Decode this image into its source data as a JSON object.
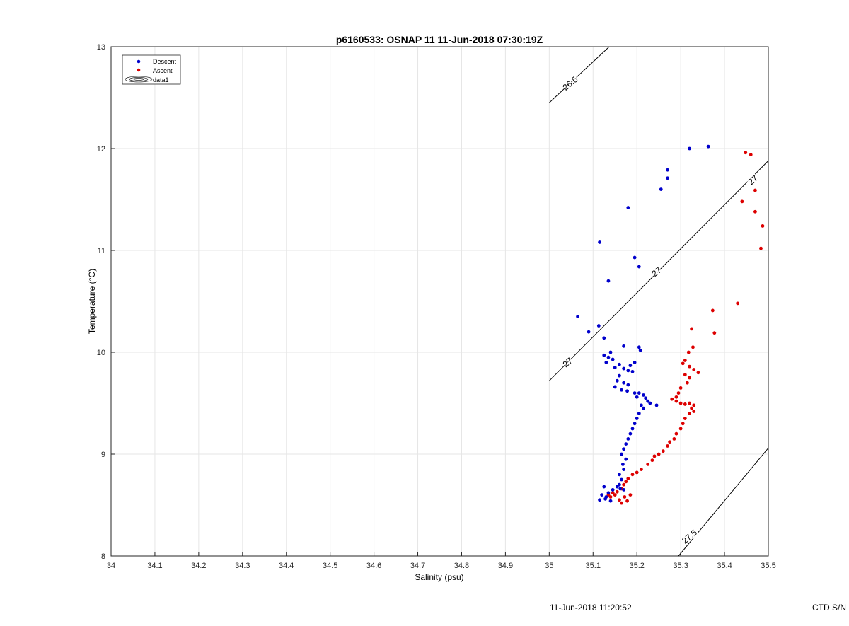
{
  "chart_data": {
    "type": "scatter",
    "title": "p6160533: OSNAP 11 11-Jun-2018 07:30:19Z",
    "xlabel": "Salinity (psu)",
    "ylabel": "Temperature (°C)",
    "xlim": [
      34,
      35.5
    ],
    "ylim": [
      8,
      13
    ],
    "xticks": [
      34,
      34.1,
      34.2,
      34.3,
      34.4,
      34.5,
      34.6,
      34.7,
      34.8,
      34.9,
      35,
      35.1,
      35.2,
      35.3,
      35.4,
      35.5
    ],
    "xtick_labels": [
      "34",
      "34.1",
      "34.2",
      "34.3",
      "34.4",
      "34.5",
      "34.6",
      "34.7",
      "34.8",
      "34.9",
      "35",
      "35.1",
      "35.2",
      "35.3",
      "35.4",
      "35.5"
    ],
    "yticks": [
      8,
      9,
      10,
      11,
      12,
      13
    ],
    "ytick_labels": [
      "8",
      "9",
      "10",
      "11",
      "12",
      "13"
    ],
    "grid": true,
    "legend_position": "top-left",
    "legend": [
      "Descent",
      "Ascent",
      "data1"
    ],
    "colors": {
      "descent": "#0000cc",
      "ascent": "#dd0000",
      "contour": "#000000"
    },
    "contours": [
      {
        "label": "26.5",
        "points": [
          [
            35.0,
            12.45
          ],
          [
            35.137,
            13.0
          ]
        ]
      },
      {
        "label": "27",
        "points": [
          [
            35.0,
            9.72
          ],
          [
            35.5,
            11.88
          ]
        ]
      },
      {
        "label": "27.5",
        "points": [
          [
            35.295,
            8.0
          ],
          [
            35.5,
            9.06
          ]
        ]
      }
    ],
    "contour_labels": [
      {
        "text": "26.5",
        "x": 35.048,
        "y": 12.64
      },
      {
        "text": "27",
        "x": 35.042,
        "y": 9.9
      },
      {
        "text": "27",
        "x": 35.245,
        "y": 10.79
      },
      {
        "text": "27",
        "x": 35.465,
        "y": 11.69
      },
      {
        "text": "27.5",
        "x": 35.32,
        "y": 8.19
      }
    ],
    "series": [
      {
        "name": "Descent",
        "points": [
          [
            35.32,
            12.0
          ],
          [
            35.363,
            12.02
          ],
          [
            35.27,
            11.79
          ],
          [
            35.27,
            11.71
          ],
          [
            35.255,
            11.6
          ],
          [
            35.18,
            11.42
          ],
          [
            35.115,
            11.08
          ],
          [
            35.195,
            10.93
          ],
          [
            35.205,
            10.84
          ],
          [
            35.135,
            10.7
          ],
          [
            35.065,
            10.35
          ],
          [
            35.113,
            10.26
          ],
          [
            35.09,
            10.2
          ],
          [
            35.125,
            10.14
          ],
          [
            35.17,
            10.06
          ],
          [
            35.205,
            10.05
          ],
          [
            35.208,
            10.02
          ],
          [
            35.14,
            10.0
          ],
          [
            35.125,
            9.97
          ],
          [
            35.135,
            9.95
          ],
          [
            35.145,
            9.93
          ],
          [
            35.13,
            9.9
          ],
          [
            35.16,
            9.88
          ],
          [
            35.195,
            9.9
          ],
          [
            35.185,
            9.87
          ],
          [
            35.15,
            9.85
          ],
          [
            35.17,
            9.84
          ],
          [
            35.18,
            9.82
          ],
          [
            35.19,
            9.81
          ],
          [
            35.16,
            9.77
          ],
          [
            35.155,
            9.72
          ],
          [
            35.17,
            9.7
          ],
          [
            35.18,
            9.68
          ],
          [
            35.15,
            9.66
          ],
          [
            35.165,
            9.63
          ],
          [
            35.178,
            9.62
          ],
          [
            35.195,
            9.6
          ],
          [
            35.205,
            9.6
          ],
          [
            35.215,
            9.58
          ],
          [
            35.2,
            9.56
          ],
          [
            35.22,
            9.55
          ],
          [
            35.225,
            9.52
          ],
          [
            35.23,
            9.5
          ],
          [
            35.245,
            9.48
          ],
          [
            35.21,
            9.48
          ],
          [
            35.215,
            9.45
          ],
          [
            35.205,
            9.4
          ],
          [
            35.2,
            9.35
          ],
          [
            35.195,
            9.3
          ],
          [
            35.19,
            9.25
          ],
          [
            35.185,
            9.2
          ],
          [
            35.18,
            9.15
          ],
          [
            35.175,
            9.1
          ],
          [
            35.17,
            9.05
          ],
          [
            35.165,
            9.0
          ],
          [
            35.175,
            8.95
          ],
          [
            35.168,
            8.9
          ],
          [
            35.17,
            8.85
          ],
          [
            35.16,
            8.8
          ],
          [
            35.165,
            8.75
          ],
          [
            35.16,
            8.7
          ],
          [
            35.155,
            8.68
          ],
          [
            35.145,
            8.65
          ],
          [
            35.135,
            8.62
          ],
          [
            35.125,
            8.68
          ],
          [
            35.12,
            8.6
          ],
          [
            35.13,
            8.58
          ],
          [
            35.115,
            8.55
          ],
          [
            35.14,
            8.54
          ],
          [
            35.128,
            8.56
          ],
          [
            35.17,
            8.65
          ],
          [
            35.162,
            8.66
          ]
        ]
      },
      {
        "name": "Ascent",
        "points": [
          [
            35.448,
            11.96
          ],
          [
            35.46,
            11.94
          ],
          [
            35.47,
            11.59
          ],
          [
            35.44,
            11.48
          ],
          [
            35.47,
            11.38
          ],
          [
            35.487,
            11.24
          ],
          [
            35.483,
            11.02
          ],
          [
            35.43,
            10.48
          ],
          [
            35.373,
            10.41
          ],
          [
            35.377,
            10.19
          ],
          [
            35.325,
            10.23
          ],
          [
            35.328,
            10.05
          ],
          [
            35.318,
            10.0
          ],
          [
            35.31,
            9.92
          ],
          [
            35.305,
            9.89
          ],
          [
            35.32,
            9.86
          ],
          [
            35.33,
            9.83
          ],
          [
            35.34,
            9.8
          ],
          [
            35.31,
            9.78
          ],
          [
            35.32,
            9.75
          ],
          [
            35.315,
            9.7
          ],
          [
            35.3,
            9.65
          ],
          [
            35.295,
            9.6
          ],
          [
            35.29,
            9.56
          ],
          [
            35.28,
            9.54
          ],
          [
            35.29,
            9.52
          ],
          [
            35.3,
            9.5
          ],
          [
            35.31,
            9.49
          ],
          [
            35.32,
            9.5
          ],
          [
            35.33,
            9.48
          ],
          [
            35.325,
            9.45
          ],
          [
            35.33,
            9.42
          ],
          [
            35.32,
            9.4
          ],
          [
            35.31,
            9.35
          ],
          [
            35.305,
            9.3
          ],
          [
            35.3,
            9.25
          ],
          [
            35.29,
            9.2
          ],
          [
            35.285,
            9.15
          ],
          [
            35.275,
            9.12
          ],
          [
            35.27,
            9.08
          ],
          [
            35.26,
            9.03
          ],
          [
            35.25,
            9.0
          ],
          [
            35.24,
            8.98
          ],
          [
            35.235,
            8.94
          ],
          [
            35.225,
            8.9
          ],
          [
            35.21,
            8.85
          ],
          [
            35.2,
            8.82
          ],
          [
            35.19,
            8.8
          ],
          [
            35.18,
            8.76
          ],
          [
            35.175,
            8.73
          ],
          [
            35.17,
            8.7
          ],
          [
            35.165,
            8.66
          ],
          [
            35.155,
            8.63
          ],
          [
            35.15,
            8.6
          ],
          [
            35.14,
            8.58
          ],
          [
            35.16,
            8.55
          ],
          [
            35.165,
            8.52
          ],
          [
            35.178,
            8.54
          ],
          [
            35.185,
            8.6
          ],
          [
            35.145,
            8.62
          ],
          [
            35.135,
            8.6
          ],
          [
            35.172,
            8.58
          ]
        ]
      }
    ]
  },
  "footer": {
    "timestamp": "11-Jun-2018 11:20:52",
    "ctd_label": "CTD S/N"
  }
}
